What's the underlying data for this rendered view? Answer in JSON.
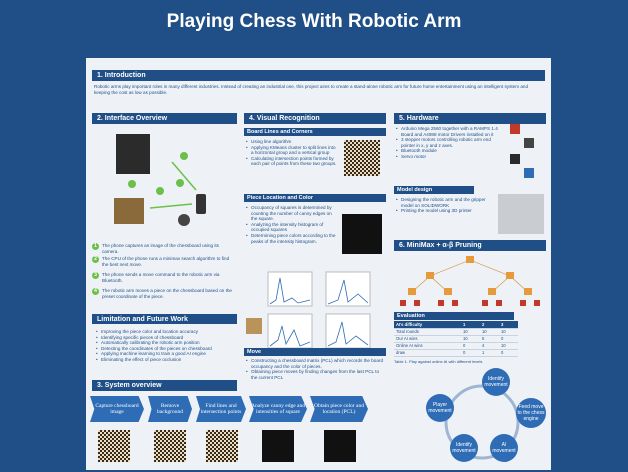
{
  "title": "Playing Chess With Robotic Arm",
  "intro": {
    "heading": "1. Introduction",
    "text": "Robotic arms play important roles in many different industries. Instead of creating an industrial one, this project aims to create a stand-alone robotic arm for future home entertainment using an intelligent system and keeping the cost as low as possible."
  },
  "interface": {
    "heading": "2. Interface Overview",
    "steps": [
      {
        "n": "1",
        "text": "The phone captures an image of the chessboard using its camera."
      },
      {
        "n": "2",
        "text": "The CPU of the phone runs a minimax search algorithm to find the best next move."
      },
      {
        "n": "3",
        "text": "The phone sends a move command to the robotic arm via Bluetooth."
      },
      {
        "n": "4",
        "text": "The robotic arm moves a piece on the chessboard based on the preset coordinate of the piece."
      }
    ]
  },
  "limitation": {
    "heading": "Limitation and Future Work",
    "items": [
      "Improving the piece color and location accuracy",
      "Identifying specific pieces of chessboard",
      "Automatically calibrating the robotic arm position",
      "Detecting the coordinates of the pieces on chessboard",
      "Applying machine learning to train a good AI engine",
      "Eliminating the effect of piece occlusion"
    ]
  },
  "system": {
    "heading": "3. System overview",
    "stages": [
      "Capture chessboard image",
      "Remove background",
      "Find lines and intersection points",
      "Analyze canny edge and intensities of square",
      "Obtain piece color and location (PCL)"
    ]
  },
  "visual": {
    "heading": "4. Visual Recognition",
    "board_lines": {
      "heading": "Board Lines and Corners",
      "items": [
        "Using line algorithm",
        "Applying KMeans cluster to split lines into a horizontal group and a vertical group",
        "Calculating intersection points formed by each pair of points from these two groups."
      ]
    },
    "piece": {
      "heading": "Piece Location and Color",
      "items": [
        "Occupancy of squares is determined by counting the number of canny edges on the square.",
        "Analyzing the intensity histogram of occupied squares",
        "Determining piece colors according to the peaks of the intensity histogram."
      ]
    },
    "move": {
      "heading": "Move",
      "items": [
        "Constructing a chessboard matrix (PCL) which records the board occupancy and the color of pieces.",
        "Obtaining piece moves by finding changes from the last PCL to the current PCL"
      ]
    }
  },
  "hardware": {
    "heading": "5. Hardware",
    "items": [
      "Arduino Mega 2560 together with a RAMPS 1.4 Board and A4988 motor Drivers installed on it",
      "3 stepper motors controlling robotic arm end pointer in x, y and z axes.",
      "Bluetooth module",
      "Servo motor"
    ],
    "model_heading": "Model design",
    "model_items": [
      "Designing the robotic arm and the gripper model on SOLIDWORK",
      "Printing the model using 3D printer"
    ]
  },
  "minimax": {
    "heading": "6. MiniMax + α-β Pruning",
    "eval_heading": "Evaluation",
    "columns": [
      "AI's difficulty",
      "1",
      "2",
      "3"
    ],
    "rows": [
      [
        "Total rounds",
        "10",
        "10",
        "10"
      ],
      [
        "Our AI wins",
        "10",
        "5",
        "0"
      ],
      [
        "Online AI wins",
        "0",
        "4",
        "10"
      ],
      [
        "draw",
        "0",
        "1",
        "0"
      ]
    ],
    "caption": "Table 1. Play against online AI with different levels",
    "cycle": [
      "Identify movement",
      "Feed move to the chess engine",
      "AI movement",
      "Identify movement",
      "Player movement"
    ]
  }
}
